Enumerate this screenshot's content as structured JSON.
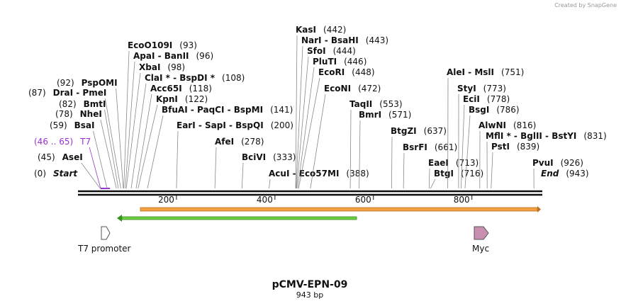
{
  "credit": "Created by SnapGene",
  "title": "pCMV-EPN-09",
  "length": "943 bp",
  "sites": [
    {
      "name": "Start",
      "position": "(0)"
    },
    {
      "name": "AseI",
      "position": "(45)"
    },
    {
      "name": "T7",
      "position": "(46 .. 65)"
    },
    {
      "name": "BsaI",
      "position": "(59)"
    },
    {
      "name": "NheI",
      "position": "(78)"
    },
    {
      "name": "BmtI",
      "position": "(82)"
    },
    {
      "name": "DraI  -  PmeI",
      "position": "(87)"
    },
    {
      "name": "PspOMI",
      "position": "(92)"
    },
    {
      "name": "EcoO109I",
      "position": "(93)"
    },
    {
      "name": "ApaI  -  BanII",
      "position": "(96)"
    },
    {
      "name": "XbaI",
      "position": "(98)"
    },
    {
      "name": "ClaI *  -  BspDI *",
      "position": "(108)"
    },
    {
      "name": "Acc65I",
      "position": "(118)"
    },
    {
      "name": "KpnI",
      "position": "(122)"
    },
    {
      "name": "BfuAI  -  PaqCI  -  BspMI",
      "position": "(141)"
    },
    {
      "name": "EarI  -  SapI  -  BspQI",
      "position": "(200)"
    },
    {
      "name": "AfeI",
      "position": "(278)"
    },
    {
      "name": "BciVI",
      "position": "(333)"
    },
    {
      "name": "AcuI  -  Eco57MI",
      "position": "(388)"
    },
    {
      "name": "KasI",
      "position": "(442)"
    },
    {
      "name": "NarI  -  BsaHI",
      "position": "(443)"
    },
    {
      "name": "SfoI",
      "position": "(444)"
    },
    {
      "name": "PluTI",
      "position": "(446)"
    },
    {
      "name": "EcoRI",
      "position": "(448)"
    },
    {
      "name": "EcoNI",
      "position": "(472)"
    },
    {
      "name": "TaqII",
      "position": "(553)"
    },
    {
      "name": "BmrI",
      "position": "(571)"
    },
    {
      "name": "BtgZI",
      "position": "(637)"
    },
    {
      "name": "BsrFI",
      "position": "(661)"
    },
    {
      "name": "EaeI",
      "position": "(713)"
    },
    {
      "name": "BtgI",
      "position": "(716)"
    },
    {
      "name": "AleI  -  MslI",
      "position": "(751)"
    },
    {
      "name": "StyI",
      "position": "(773)"
    },
    {
      "name": "EciI",
      "position": "(778)"
    },
    {
      "name": "BsgI",
      "position": "(786)"
    },
    {
      "name": "AlwNI",
      "position": "(816)"
    },
    {
      "name": "MflI *  -  BglII  -  BstYI",
      "position": "(831)"
    },
    {
      "name": "PstI",
      "position": "(839)"
    },
    {
      "name": "PvuI",
      "position": "(926)"
    },
    {
      "name": "End",
      "position": "(943)"
    }
  ],
  "ruler": {
    "ticks": [
      "200",
      "400",
      "600",
      "800"
    ]
  },
  "features": [
    {
      "label": "T7 promoter"
    },
    {
      "label": "Myc"
    }
  ]
}
